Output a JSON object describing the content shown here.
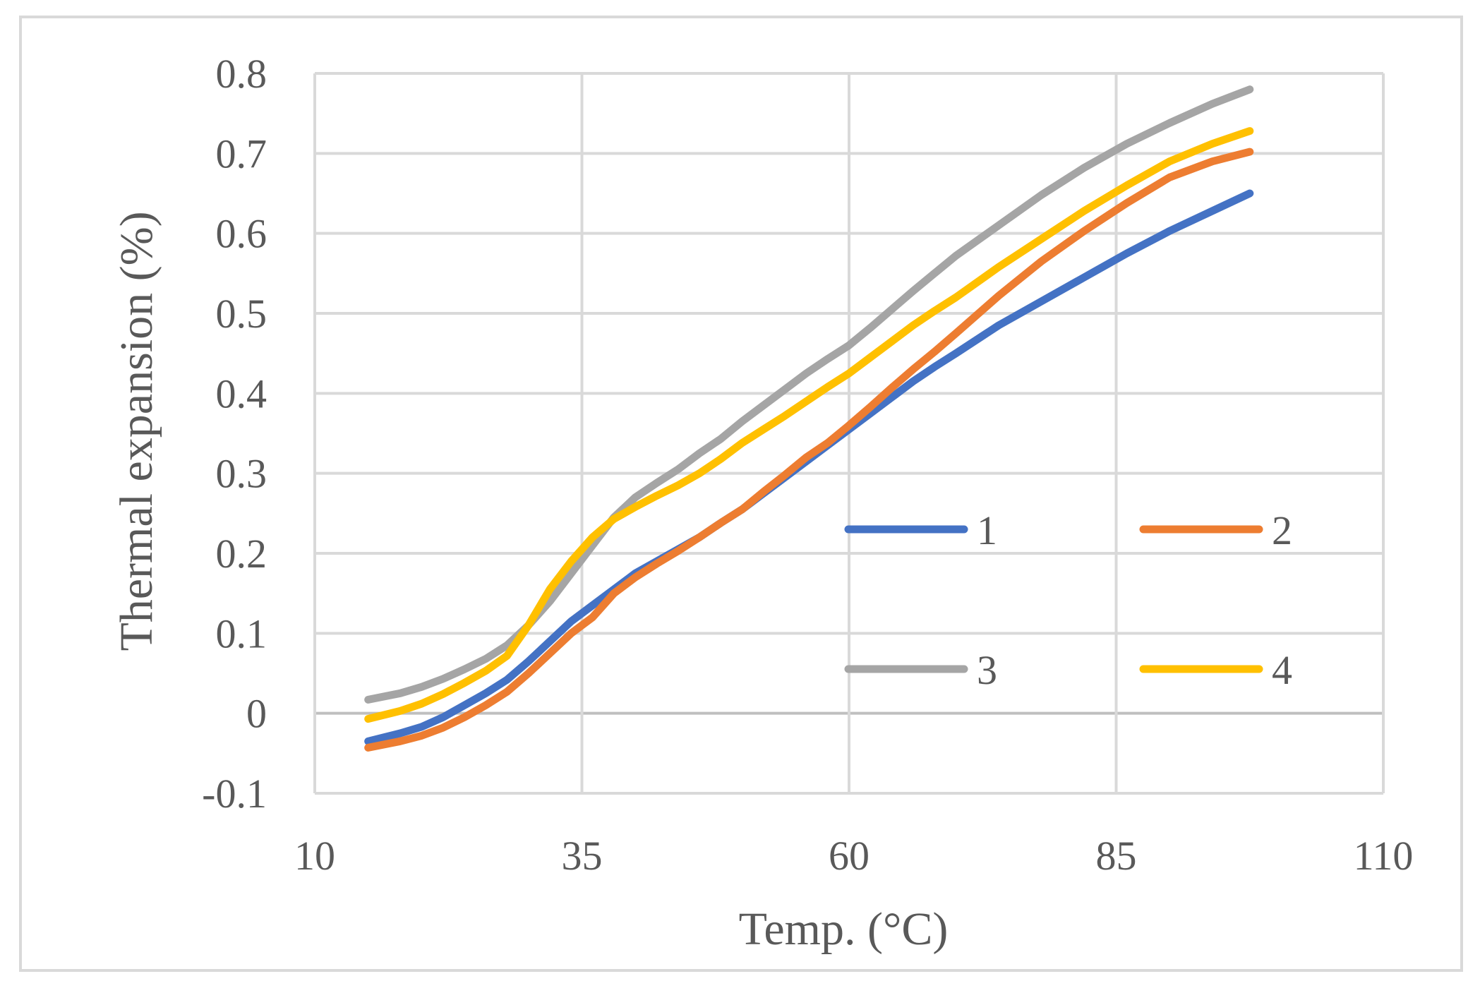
{
  "chart_data": {
    "type": "line",
    "title": "",
    "xlabel": "Temp. (°C)",
    "ylabel": "Thermal expansion (%)",
    "xlim": [
      10,
      110
    ],
    "ylim": [
      -0.1,
      0.8
    ],
    "x_ticks": [
      10,
      35,
      60,
      85,
      110
    ],
    "y_ticks": [
      -0.1,
      0,
      0.1,
      0.2,
      0.3,
      0.4,
      0.5,
      0.6,
      0.7,
      0.8
    ],
    "x_tick_labels": [
      "10",
      "35",
      "60",
      "85",
      "110"
    ],
    "y_tick_labels": [
      "-0.1",
      "0",
      "0.1",
      "0.2",
      "0.3",
      "0.4",
      "0.5",
      "0.6",
      "0.7",
      "0.8"
    ],
    "grid": true,
    "legend_position": "center-right",
    "series": [
      {
        "name": "1",
        "color": "#4472C4",
        "x": [
          15,
          18,
          20,
          22,
          24,
          26,
          28,
          30,
          32,
          34,
          36,
          38,
          40,
          42,
          44,
          46,
          48,
          50,
          52,
          54,
          56,
          58,
          60,
          62,
          64,
          66,
          68,
          70,
          74,
          78,
          82,
          86,
          90,
          94,
          97.5
        ],
        "y": [
          -0.035,
          -0.025,
          -0.017,
          -0.005,
          0.01,
          0.025,
          0.042,
          0.065,
          0.09,
          0.115,
          0.135,
          0.155,
          0.175,
          0.19,
          0.205,
          0.22,
          0.238,
          0.255,
          0.275,
          0.295,
          0.315,
          0.335,
          0.355,
          0.375,
          0.395,
          0.415,
          0.433,
          0.45,
          0.485,
          0.515,
          0.545,
          0.575,
          0.603,
          0.628,
          0.65
        ]
      },
      {
        "name": "2",
        "color": "#ED7D31",
        "x": [
          15,
          18,
          20,
          22,
          24,
          26,
          28,
          30,
          32,
          34,
          36,
          38,
          40,
          42,
          44,
          46,
          48,
          50,
          52,
          54,
          56,
          58,
          60,
          62,
          64,
          66,
          68,
          70,
          74,
          78,
          82,
          86,
          90,
          94,
          97.5
        ],
        "y": [
          -0.043,
          -0.035,
          -0.028,
          -0.018,
          -0.005,
          0.01,
          0.027,
          0.05,
          0.075,
          0.1,
          0.12,
          0.15,
          0.17,
          0.187,
          0.203,
          0.22,
          0.238,
          0.255,
          0.277,
          0.298,
          0.32,
          0.338,
          0.36,
          0.383,
          0.407,
          0.43,
          0.452,
          0.475,
          0.522,
          0.565,
          0.603,
          0.638,
          0.67,
          0.69,
          0.702
        ]
      },
      {
        "name": "3",
        "color": "#A5A5A5",
        "x": [
          15,
          18,
          20,
          22,
          24,
          26,
          28,
          30,
          32,
          34,
          36,
          38,
          40,
          42,
          44,
          46,
          48,
          50,
          52,
          54,
          56,
          58,
          60,
          62,
          64,
          66,
          68,
          70,
          74,
          78,
          82,
          86,
          90,
          94,
          97.5
        ],
        "y": [
          0.017,
          0.025,
          0.033,
          0.043,
          0.055,
          0.068,
          0.085,
          0.11,
          0.14,
          0.175,
          0.21,
          0.245,
          0.27,
          0.288,
          0.305,
          0.325,
          0.343,
          0.365,
          0.385,
          0.405,
          0.425,
          0.443,
          0.46,
          0.482,
          0.505,
          0.528,
          0.55,
          0.572,
          0.61,
          0.648,
          0.682,
          0.712,
          0.738,
          0.762,
          0.78
        ]
      },
      {
        "name": "4",
        "color": "#FFC000",
        "x": [
          15,
          18,
          20,
          22,
          24,
          26,
          28,
          30,
          32,
          34,
          36,
          38,
          40,
          42,
          44,
          46,
          48,
          50,
          52,
          54,
          56,
          58,
          60,
          62,
          64,
          66,
          68,
          70,
          74,
          78,
          82,
          86,
          90,
          94,
          97.5
        ],
        "y": [
          -0.007,
          0.003,
          0.012,
          0.024,
          0.038,
          0.053,
          0.072,
          0.11,
          0.155,
          0.19,
          0.22,
          0.243,
          0.258,
          0.272,
          0.285,
          0.3,
          0.318,
          0.338,
          0.355,
          0.372,
          0.39,
          0.408,
          0.425,
          0.445,
          0.465,
          0.485,
          0.503,
          0.52,
          0.558,
          0.593,
          0.628,
          0.66,
          0.69,
          0.712,
          0.728
        ]
      }
    ]
  }
}
